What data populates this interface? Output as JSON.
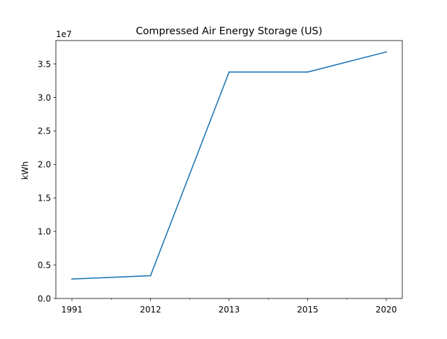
{
  "chart_data": {
    "type": "line",
    "title": "Compressed Air Energy Storage (US)",
    "ylabel": "kWh",
    "xlabel": "",
    "y_offset_text": "1e7",
    "categories": [
      "1991",
      "2012",
      "2013",
      "2015",
      "2020"
    ],
    "series": [
      {
        "values": [
          2900000,
          3400000,
          33800000,
          33800000,
          36800000
        ],
        "color": "#1f77b4"
      }
    ],
    "ylim": [
      0,
      38500000
    ],
    "yticks": [
      0,
      5000000,
      10000000,
      15000000,
      20000000,
      25000000,
      30000000,
      35000000
    ],
    "ytick_labels": [
      "0.0",
      "0.5",
      "1.0",
      "1.5",
      "2.0",
      "2.5",
      "3.0",
      "3.5"
    ],
    "grid": false,
    "legend": false
  }
}
